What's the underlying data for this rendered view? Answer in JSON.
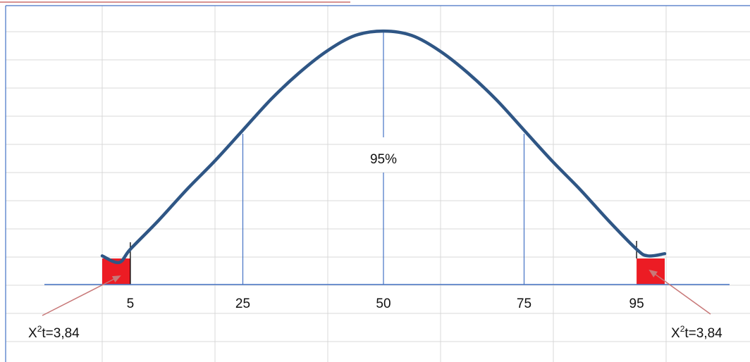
{
  "chart_data": {
    "type": "line",
    "title": "",
    "xlabel": "",
    "ylabel": "",
    "x_ticks": [
      5,
      25,
      50,
      75,
      95
    ],
    "center_label": "95%",
    "annotations": [
      {
        "prefix": "X",
        "sup": "2",
        "suffix": "t=3,84",
        "side": "left"
      },
      {
        "prefix": "X",
        "sup": "2",
        "suffix": "t=3,84",
        "side": "right"
      }
    ],
    "shaded_tails": [
      {
        "from": 0,
        "to": 5
      },
      {
        "from": 95,
        "to": 100
      }
    ],
    "series": [
      {
        "x": [
          0,
          3,
          5,
          10,
          15,
          20,
          25,
          30,
          35,
          40,
          45,
          50,
          55,
          60,
          65,
          70,
          75,
          80,
          85,
          90,
          95,
          97,
          100
        ],
        "y": [
          0.13,
          0.1,
          0.16,
          0.29,
          0.43,
          0.56,
          0.7,
          0.84,
          0.96,
          1.06,
          1.13,
          1.15,
          1.13,
          1.06,
          0.96,
          0.84,
          0.7,
          0.56,
          0.43,
          0.29,
          0.16,
          0.13,
          0.14
        ]
      }
    ],
    "colors": {
      "curve": "#2f5685",
      "tail": "#ec1c24",
      "axis": "#4472c4",
      "grid": "#d9d9d9",
      "arrow": "#c87878",
      "frame": "#4472c4",
      "top_rule": "#c0504d",
      "tail_edge": "#000000"
    }
  }
}
